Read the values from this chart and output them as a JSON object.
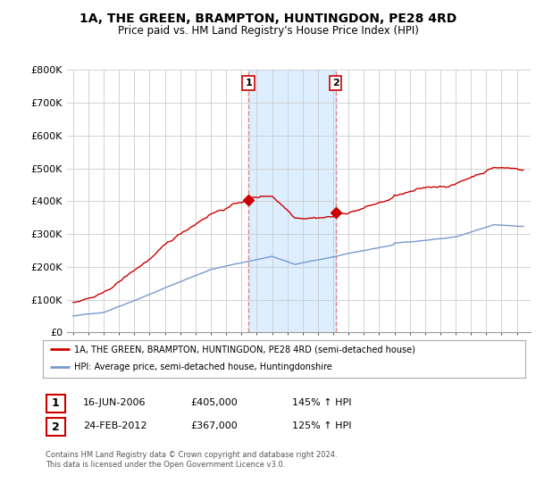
{
  "title": "1A, THE GREEN, BRAMPTON, HUNTINGDON, PE28 4RD",
  "subtitle": "Price paid vs. HM Land Registry's House Price Index (HPI)",
  "ylim": [
    0,
    800000
  ],
  "yticks": [
    0,
    100000,
    200000,
    300000,
    400000,
    500000,
    600000,
    700000,
    800000
  ],
  "ytick_labels": [
    "£0",
    "£100K",
    "£200K",
    "£300K",
    "£400K",
    "£500K",
    "£600K",
    "£700K",
    "£800K"
  ],
  "legend_line1": "1A, THE GREEN, BRAMPTON, HUNTINGDON, PE28 4RD (semi-detached house)",
  "legend_line2": "HPI: Average price, semi-detached house, Huntingdonshire",
  "sale1_label": "1",
  "sale1_date": "16-JUN-2006",
  "sale1_price": "£405,000",
  "sale1_hpi": "145% ↑ HPI",
  "sale2_label": "2",
  "sale2_date": "24-FEB-2012",
  "sale2_price": "£367,000",
  "sale2_hpi": "125% ↑ HPI",
  "footer": "Contains HM Land Registry data © Crown copyright and database right 2024.\nThis data is licensed under the Open Government Licence v3.0.",
  "red_color": "#cc0000",
  "blue_color": "#7799cc",
  "highlight_color": "#ddeeff",
  "dash_color": "#dd8888",
  "sale1_x": 2006.46,
  "sale2_x": 2012.15,
  "grid_color": "#cccccc"
}
